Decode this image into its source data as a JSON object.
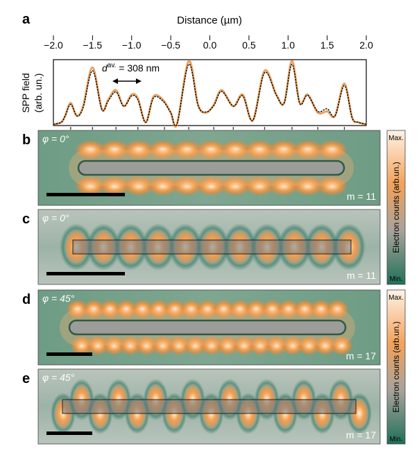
{
  "panel_a": {
    "letter": "a",
    "xlabel": "Distance (µm)",
    "ylabel_line1": "SPP field",
    "ylabel_line2": "(arb. un.)",
    "annotation": "d av. = 308 nm",
    "annotation_symbol": "d",
    "annotation_sup": "av.",
    "annotation_value": " = 308 nm",
    "chart_data": {
      "type": "line",
      "xlabel": "Distance (µm)",
      "ylabel": "SPP field (arb. un.)",
      "xlim": [
        -2.0,
        2.0
      ],
      "ylim": [
        0,
        1
      ],
      "xticks": [
        "−2.0",
        "−1.5",
        "−1.0",
        "−0.5",
        "0.0",
        "0.5",
        "1.0",
        "1.5",
        "2.0"
      ],
      "xtick_values": [
        -2.0,
        -1.5,
        -1.0,
        -0.5,
        0.0,
        0.5,
        1.0,
        1.5,
        2.0
      ],
      "series": [
        {
          "color": "#e8a060",
          "x": [
            -2.0,
            -1.9,
            -1.85,
            -1.78,
            -1.7,
            -1.62,
            -1.5,
            -1.38,
            -1.3,
            -1.2,
            -1.1,
            -1.0,
            -0.92,
            -0.82,
            -0.72,
            -0.6,
            -0.5,
            -0.42,
            -0.27,
            -0.15,
            -0.05,
            0.05,
            0.15,
            0.3,
            0.42,
            0.55,
            0.7,
            0.85,
            0.95,
            1.05,
            1.15,
            1.25,
            1.38,
            1.5,
            1.6,
            1.72,
            1.82,
            1.9,
            2.0
          ],
          "y": [
            0.02,
            0.05,
            0.15,
            0.35,
            0.15,
            0.3,
            0.9,
            0.25,
            0.4,
            0.55,
            0.3,
            0.48,
            0.42,
            0.05,
            0.45,
            0.4,
            0.2,
            0.02,
            1.0,
            0.32,
            0.2,
            0.32,
            0.55,
            0.3,
            0.48,
            0.08,
            0.85,
            0.48,
            0.35,
            1.0,
            0.35,
            0.48,
            0.2,
            0.22,
            0.15,
            0.65,
            0.12,
            0.05,
            0.02
          ]
        },
        {
          "color": "#000000",
          "x": [
            -2.0,
            -1.9,
            -1.85,
            -1.78,
            -1.7,
            -1.62,
            -1.5,
            -1.38,
            -1.3,
            -1.2,
            -1.1,
            -1.0,
            -0.92,
            -0.82,
            -0.72,
            -0.6,
            -0.5,
            -0.42,
            -0.27,
            -0.15,
            -0.05,
            0.05,
            0.15,
            0.3,
            0.42,
            0.55,
            0.7,
            0.85,
            0.95,
            1.05,
            1.15,
            1.25,
            1.38,
            1.5,
            1.6,
            1.72,
            1.82,
            1.9,
            2.0
          ],
          "y": [
            0.02,
            0.05,
            0.15,
            0.33,
            0.15,
            0.28,
            0.85,
            0.25,
            0.38,
            0.52,
            0.3,
            0.46,
            0.4,
            0.05,
            0.43,
            0.38,
            0.2,
            0.03,
            0.95,
            0.31,
            0.21,
            0.31,
            0.53,
            0.3,
            0.46,
            0.08,
            0.82,
            0.47,
            0.35,
            0.95,
            0.34,
            0.47,
            0.22,
            0.26,
            0.15,
            0.62,
            0.12,
            0.05,
            0.02
          ]
        }
      ],
      "peak_positions": [
        -1.78,
        -1.5,
        -1.2,
        -0.92,
        -0.58,
        -0.27,
        0.05,
        0.3,
        0.7,
        1.05,
        1.38,
        1.72
      ]
    }
  },
  "panels": [
    {
      "letter": "b",
      "phi": "φ = 0°",
      "m": "m = 11",
      "kind": "exp",
      "peaks": 11
    },
    {
      "letter": "c",
      "phi": "φ = 0°",
      "m": "m = 11",
      "kind": "sim",
      "peaks": 11
    },
    {
      "letter": "d",
      "phi": "φ = 45°",
      "m": "m = 17",
      "kind": "exp",
      "peaks": 17
    },
    {
      "letter": "e",
      "phi": "φ = 45°",
      "m": "m = 17",
      "kind": "sim",
      "peaks": 17
    }
  ],
  "colorbar": {
    "max": "Max.",
    "min": "Min.",
    "label": "Electron counts (arb.un.)",
    "colors": [
      "#ffffff",
      "#f0a050",
      "#a0a0a0",
      "#2a7a60"
    ]
  }
}
